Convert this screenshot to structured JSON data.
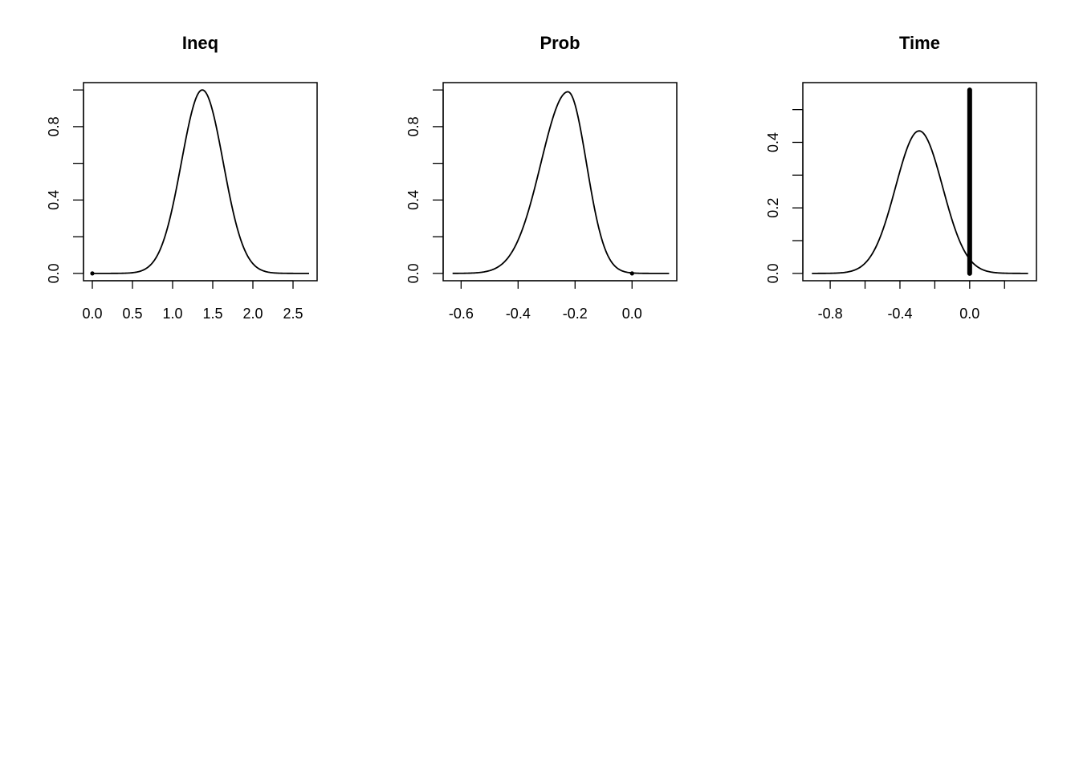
{
  "chart_data": [
    {
      "type": "line",
      "title": "Ineq",
      "xlabel": "",
      "ylabel": "",
      "xlim": [
        -0.11,
        2.8
      ],
      "ylim": [
        -0.04,
        1.04
      ],
      "x_ticks": [
        0.0,
        0.5,
        1.0,
        1.5,
        2.0,
        2.5
      ],
      "x_tick_labels": [
        "0.0",
        "0.5",
        "1.0",
        "1.5",
        "2.0",
        "2.5"
      ],
      "y_ticks": [
        0.0,
        0.2,
        0.4,
        0.6,
        0.8,
        1.0
      ],
      "y_tick_labels": [
        "0.0",
        "",
        "0.4",
        "",
        "0.8",
        ""
      ],
      "curve": {
        "shape": "normal-density",
        "mean": 1.37,
        "sd": 0.26,
        "peak": 1.0,
        "x_range": [
          0.0,
          2.7
        ]
      },
      "marker": {
        "kind": "point",
        "x": 0.0,
        "y": 0.0
      },
      "grid": false,
      "legend": "none"
    },
    {
      "type": "line",
      "title": "Prob",
      "xlabel": "",
      "ylabel": "",
      "xlim": [
        -0.663,
        0.157
      ],
      "ylim": [
        -0.04,
        1.04
      ],
      "x_ticks": [
        -0.6,
        -0.4,
        -0.2,
        0.0
      ],
      "x_tick_labels": [
        "-0.6",
        "-0.4",
        "-0.2",
        "0.0"
      ],
      "y_ticks": [
        0.0,
        0.2,
        0.4,
        0.6,
        0.8,
        1.0
      ],
      "y_tick_labels": [
        "0.0",
        "",
        "0.4",
        "",
        "0.8",
        ""
      ],
      "curve": {
        "shape": "skewed-normal-density",
        "mode": -0.225,
        "sd_left": 0.095,
        "sd_right": 0.065,
        "peak": 0.99,
        "x_range": [
          -0.63,
          0.13
        ]
      },
      "marker": {
        "kind": "point",
        "x": 0.0,
        "y": 0.0
      },
      "grid": false,
      "legend": "none"
    },
    {
      "type": "line",
      "title": "Time",
      "xlabel": "",
      "ylabel": "",
      "xlim": [
        -0.957,
        0.383
      ],
      "ylim": [
        -0.0224,
        0.5824
      ],
      "x_ticks": [
        -0.8,
        -0.6,
        -0.4,
        -0.2,
        0.0,
        0.2
      ],
      "x_tick_labels": [
        "-0.8",
        "",
        "-0.4",
        "",
        "0.0",
        ""
      ],
      "y_ticks": [
        0.0,
        0.1,
        0.2,
        0.3,
        0.4,
        0.5
      ],
      "y_tick_labels": [
        "0.0",
        "",
        "0.2",
        "",
        "0.4",
        ""
      ],
      "curve": {
        "shape": "normal-density",
        "mean": -0.29,
        "sd": 0.135,
        "peak": 0.435,
        "x_range": [
          -0.905,
          0.335
        ]
      },
      "marker": {
        "kind": "vertical-bar",
        "x": 0.0,
        "y_from": 0.0,
        "y_to": 0.56
      },
      "grid": false,
      "legend": "none"
    }
  ]
}
